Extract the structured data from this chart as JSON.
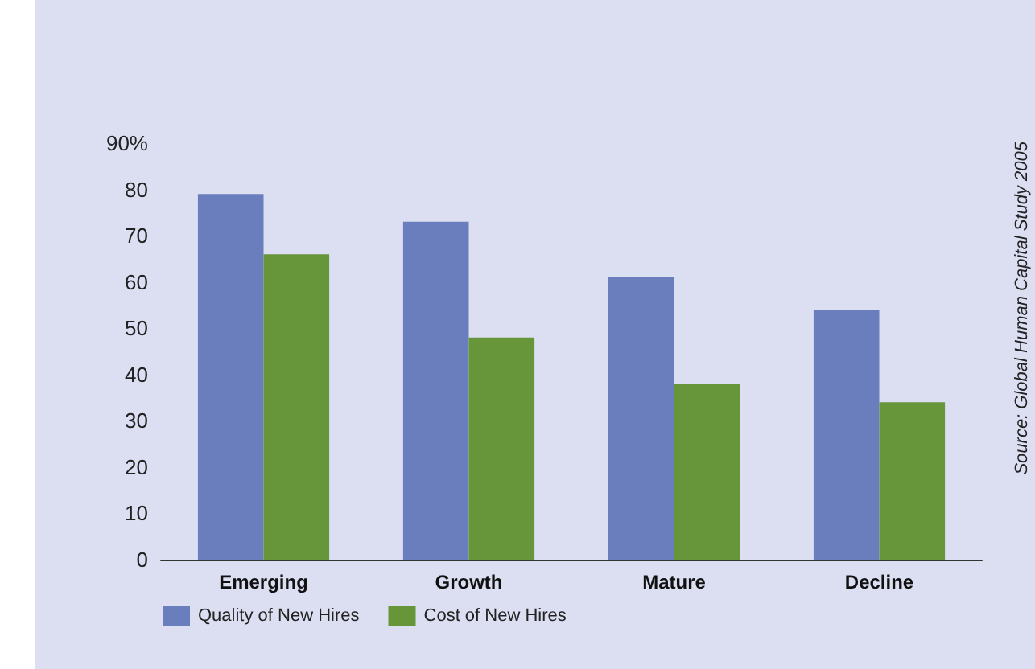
{
  "chart_data": {
    "type": "bar",
    "categories": [
      "Emerging",
      "Growth",
      "Mature",
      "Decline"
    ],
    "series": [
      {
        "name": "Quality of New Hires",
        "color": "#6a7dbd",
        "values": [
          79,
          73,
          61,
          54
        ]
      },
      {
        "name": "Cost of New Hires",
        "color": "#66953a",
        "values": [
          66,
          48,
          38,
          34
        ]
      }
    ],
    "ylim": [
      0,
      90
    ],
    "yticks": [
      0,
      10,
      20,
      30,
      40,
      50,
      60,
      70,
      80,
      {
        "value": 90,
        "label": "90%"
      }
    ],
    "grid": false,
    "legend": "bottom left",
    "annotations": [
      "Source: Global Human Capital Study 2005"
    ]
  }
}
